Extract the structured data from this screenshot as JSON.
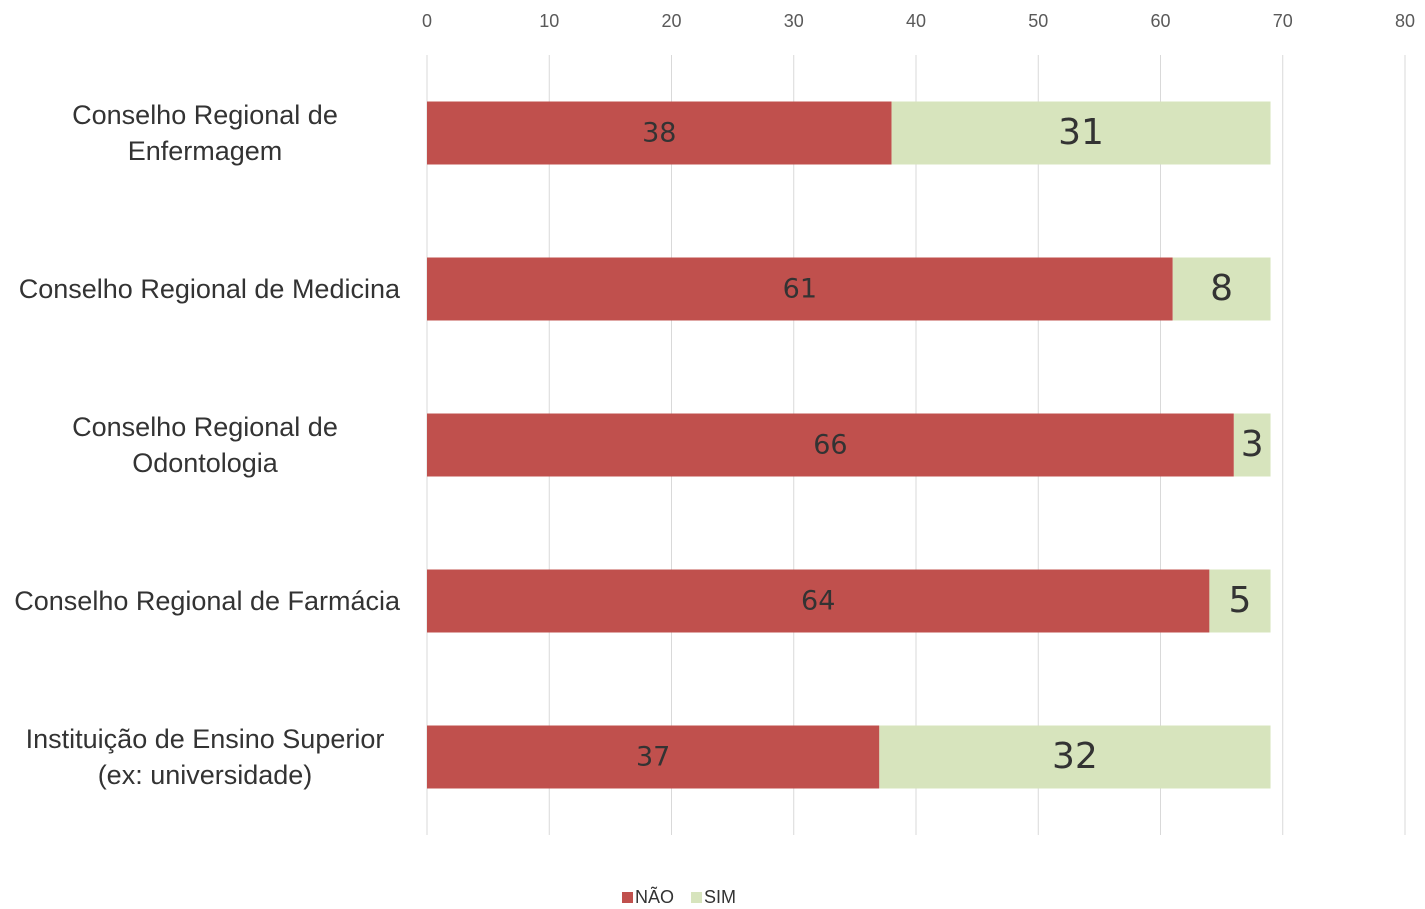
{
  "chart_data": {
    "type": "stacked-barh",
    "categories": [
      "Conselho Regional de Enfermagem",
      "Conselho Regional de Medicina",
      "Conselho Regional de Odontologia",
      "Conselho Regional de Farmácia",
      "Instituição de Ensino Superior (ex: universidade)"
    ],
    "series": [
      {
        "name": "NÃO",
        "color": "#c0504d",
        "values": [
          38,
          61,
          66,
          64,
          37
        ]
      },
      {
        "name": "SIM",
        "color": "#d7e4bd",
        "values": [
          31,
          8,
          3,
          5,
          32
        ]
      }
    ],
    "xlim": [
      0,
      80
    ],
    "xticks": [
      0,
      10,
      20,
      30,
      40,
      50,
      60,
      70,
      80
    ],
    "grid": true,
    "legend": "bottom"
  }
}
